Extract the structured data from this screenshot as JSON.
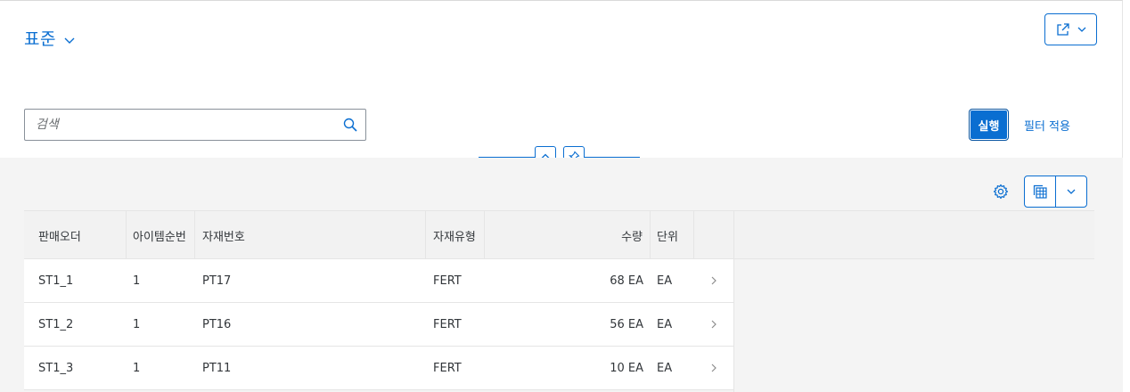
{
  "header": {
    "variant_title": "표준",
    "search_placeholder": "검색",
    "go_label": "실행",
    "filter_label": "필터 적용"
  },
  "table": {
    "columns": [
      "판매오더",
      "아이템순번",
      "자재번호",
      "자재유형",
      "수량",
      "단위"
    ],
    "rows": [
      {
        "order": "ST1_1",
        "item": "1",
        "material": "PT17",
        "type": "FERT",
        "qty": "68 EA",
        "unit": "EA"
      },
      {
        "order": "ST1_2",
        "item": "1",
        "material": "PT16",
        "type": "FERT",
        "qty": "56 EA",
        "unit": "EA"
      },
      {
        "order": "ST1_3",
        "item": "1",
        "material": "PT11",
        "type": "FERT",
        "qty": "10 EA",
        "unit": "EA"
      }
    ]
  },
  "icons": {
    "variant": "chevron-down-icon",
    "share": "share-icon",
    "search": "search-icon",
    "collapse": "chevron-up-icon",
    "pin": "pin-icon",
    "settings": "gear-icon",
    "export": "spreadsheet-export-icon",
    "row_nav": "chevron-right-icon"
  },
  "colors": {
    "accent": "#0a6ed1",
    "background": "#f4f4f4",
    "text": "#32363a"
  }
}
